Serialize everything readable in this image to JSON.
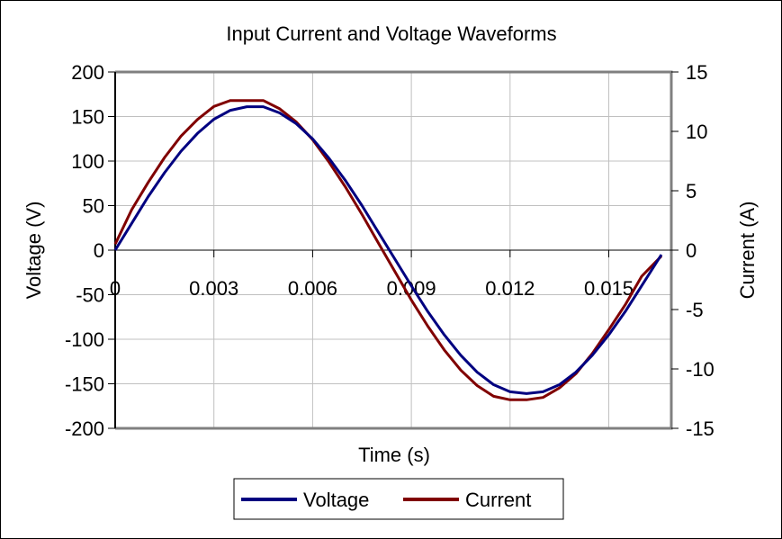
{
  "chart_data": {
    "type": "line",
    "title": "Input Current and Voltage Waveforms",
    "xlabel": "Time (s)",
    "ylabel": "Voltage (V)",
    "y2label": "Current (A)",
    "xlim": [
      0,
      0.0169
    ],
    "ylim": [
      -200,
      200
    ],
    "y2lim": [
      -15,
      15
    ],
    "xticks": [
      "0",
      "0.003",
      "0.006",
      "0.009",
      "0.012",
      "0.015"
    ],
    "xtick_values": [
      0,
      0.003,
      0.006,
      0.009,
      0.012,
      0.015
    ],
    "yticks": [
      200,
      150,
      100,
      50,
      0,
      -50,
      -100,
      -150,
      -200
    ],
    "y2ticks": [
      15,
      10,
      5,
      0,
      -5,
      -10,
      -15
    ],
    "grid": true,
    "legend_position": "bottom",
    "x": [
      0,
      0.0005,
      0.001,
      0.0015,
      0.002,
      0.0025,
      0.003,
      0.0035,
      0.004,
      0.0045,
      0.005,
      0.0055,
      0.006,
      0.0065,
      0.007,
      0.0075,
      0.008,
      0.0085,
      0.009,
      0.0095,
      0.01,
      0.0105,
      0.011,
      0.0115,
      0.012,
      0.0125,
      0.013,
      0.0135,
      0.014,
      0.0145,
      0.015,
      0.0155,
      0.016,
      0.0166
    ],
    "series": [
      {
        "name": "Voltage",
        "axis": "left",
        "color": "#000080",
        "values": [
          0,
          30,
          60,
          87,
          111,
          131,
          147,
          157,
          161,
          161,
          154,
          142,
          125,
          103,
          78,
          50,
          20,
          -10,
          -40,
          -69,
          -95,
          -118,
          -137,
          -151,
          -159,
          -161,
          -159,
          -151,
          -137,
          -118,
          -95,
          -69,
          -40,
          -5
        ]
      },
      {
        "name": "Current",
        "axis": "right",
        "color": "#800000",
        "values": [
          0.5,
          3.4,
          5.7,
          7.8,
          9.6,
          11.0,
          12.1,
          12.6,
          12.6,
          12.6,
          11.9,
          10.8,
          9.3,
          7.4,
          5.3,
          3.0,
          0.6,
          -1.8,
          -4.2,
          -6.4,
          -8.4,
          -10.1,
          -11.4,
          -12.3,
          -12.6,
          -12.6,
          -12.4,
          -11.6,
          -10.4,
          -8.7,
          -6.7,
          -4.6,
          -2.2,
          -0.5
        ]
      }
    ]
  }
}
